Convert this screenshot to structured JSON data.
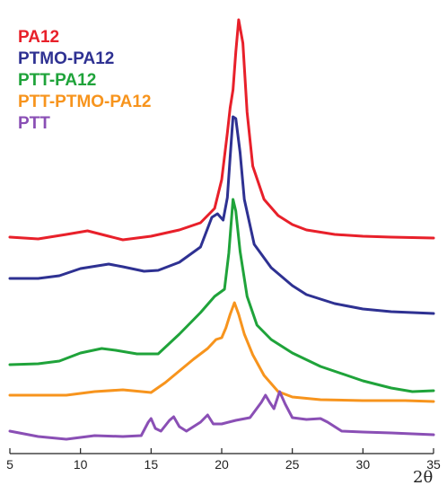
{
  "chart_data": {
    "type": "line",
    "title": "",
    "xlabel": "2θ",
    "ylabel": "",
    "xlim": [
      5,
      35
    ],
    "xticks": [
      "5",
      "10",
      "15",
      "20",
      "25",
      "30",
      "35"
    ],
    "grid": false,
    "legend_position": "top-left",
    "y_ticks_shown": false,
    "series": [
      {
        "name": "PA12",
        "color": "#e8202a",
        "points": [
          [
            5,
            264
          ],
          [
            7,
            266
          ],
          [
            9,
            261
          ],
          [
            10.5,
            257
          ],
          [
            12,
            263
          ],
          [
            13,
            267
          ],
          [
            15,
            263
          ],
          [
            17,
            256
          ],
          [
            18.5,
            248
          ],
          [
            19.5,
            232
          ],
          [
            20,
            200
          ],
          [
            20.4,
            148
          ],
          [
            20.6,
            120
          ],
          [
            20.8,
            100
          ],
          [
            21.0,
            58
          ],
          [
            21.2,
            22
          ],
          [
            21.5,
            48
          ],
          [
            21.8,
            125
          ],
          [
            22.2,
            185
          ],
          [
            23,
            222
          ],
          [
            24,
            240
          ],
          [
            25,
            250
          ],
          [
            26,
            256
          ],
          [
            28,
            261
          ],
          [
            30,
            263
          ],
          [
            32,
            264
          ],
          [
            35,
            265
          ]
        ]
      },
      {
        "name": "PTMO-PA12",
        "color": "#2e3192",
        "points": [
          [
            5,
            310
          ],
          [
            7,
            310
          ],
          [
            8.5,
            307
          ],
          [
            10,
            299
          ],
          [
            12,
            294
          ],
          [
            13,
            297
          ],
          [
            14.5,
            302
          ],
          [
            15.5,
            301
          ],
          [
            17,
            292
          ],
          [
            18.5,
            275
          ],
          [
            19.3,
            242
          ],
          [
            19.7,
            238
          ],
          [
            20.1,
            245
          ],
          [
            20.4,
            220
          ],
          [
            20.6,
            175
          ],
          [
            20.8,
            130
          ],
          [
            21.0,
            132
          ],
          [
            21.3,
            170
          ],
          [
            21.6,
            222
          ],
          [
            22.3,
            272
          ],
          [
            23.5,
            298
          ],
          [
            25,
            318
          ],
          [
            26,
            328
          ],
          [
            28,
            338
          ],
          [
            30,
            344
          ],
          [
            32,
            347
          ],
          [
            35,
            349
          ]
        ]
      },
      {
        "name": "PTT-PA12",
        "color": "#1fa33a",
        "points": [
          [
            5,
            406
          ],
          [
            7,
            405
          ],
          [
            8.5,
            402
          ],
          [
            10,
            393
          ],
          [
            11.5,
            388
          ],
          [
            12.5,
            390
          ],
          [
            14,
            394
          ],
          [
            15.5,
            394
          ],
          [
            17,
            372
          ],
          [
            18.5,
            348
          ],
          [
            19.5,
            330
          ],
          [
            20.2,
            322
          ],
          [
            20.5,
            282
          ],
          [
            20.8,
            222
          ],
          [
            21.0,
            235
          ],
          [
            21.3,
            280
          ],
          [
            21.8,
            330
          ],
          [
            22.5,
            362
          ],
          [
            23.5,
            378
          ],
          [
            25,
            393
          ],
          [
            27,
            408
          ],
          [
            30,
            424
          ],
          [
            32,
            432
          ],
          [
            33.5,
            436
          ],
          [
            35,
            435
          ]
        ]
      },
      {
        "name": "PTT-PTMO-PA12",
        "color": "#f7941d",
        "points": [
          [
            5,
            440
          ],
          [
            7,
            440
          ],
          [
            9,
            440
          ],
          [
            11,
            436
          ],
          [
            13,
            434
          ],
          [
            15,
            437
          ],
          [
            16,
            426
          ],
          [
            17,
            413
          ],
          [
            18,
            400
          ],
          [
            19,
            388
          ],
          [
            19.6,
            378
          ],
          [
            20,
            376
          ],
          [
            20.3,
            365
          ],
          [
            20.6,
            350
          ],
          [
            20.9,
            337
          ],
          [
            21.2,
            350
          ],
          [
            21.6,
            372
          ],
          [
            22.2,
            395
          ],
          [
            23,
            418
          ],
          [
            24,
            436
          ],
          [
            25,
            442
          ],
          [
            27,
            445
          ],
          [
            30,
            446
          ],
          [
            33,
            446
          ],
          [
            35,
            447
          ]
        ]
      },
      {
        "name": "PTT",
        "color": "#8a4fb5",
        "points": [
          [
            5,
            480
          ],
          [
            7,
            486
          ],
          [
            9,
            489
          ],
          [
            11,
            485
          ],
          [
            13,
            486
          ],
          [
            14.3,
            485
          ],
          [
            14.8,
            470
          ],
          [
            15.0,
            466
          ],
          [
            15.3,
            477
          ],
          [
            15.7,
            480
          ],
          [
            16.3,
            468
          ],
          [
            16.6,
            464
          ],
          [
            17.0,
            475
          ],
          [
            17.5,
            480
          ],
          [
            18.5,
            470
          ],
          [
            19.0,
            462
          ],
          [
            19.4,
            472
          ],
          [
            20,
            472
          ],
          [
            21,
            468
          ],
          [
            22,
            465
          ],
          [
            22.8,
            448
          ],
          [
            23.1,
            440
          ],
          [
            23.4,
            448
          ],
          [
            23.7,
            455
          ],
          [
            24.1,
            436
          ],
          [
            24.5,
            450
          ],
          [
            25,
            465
          ],
          [
            26,
            467
          ],
          [
            27,
            466
          ],
          [
            27.5,
            470
          ],
          [
            28.5,
            480
          ],
          [
            30,
            481
          ],
          [
            32,
            482
          ],
          [
            35,
            484
          ]
        ]
      }
    ]
  }
}
